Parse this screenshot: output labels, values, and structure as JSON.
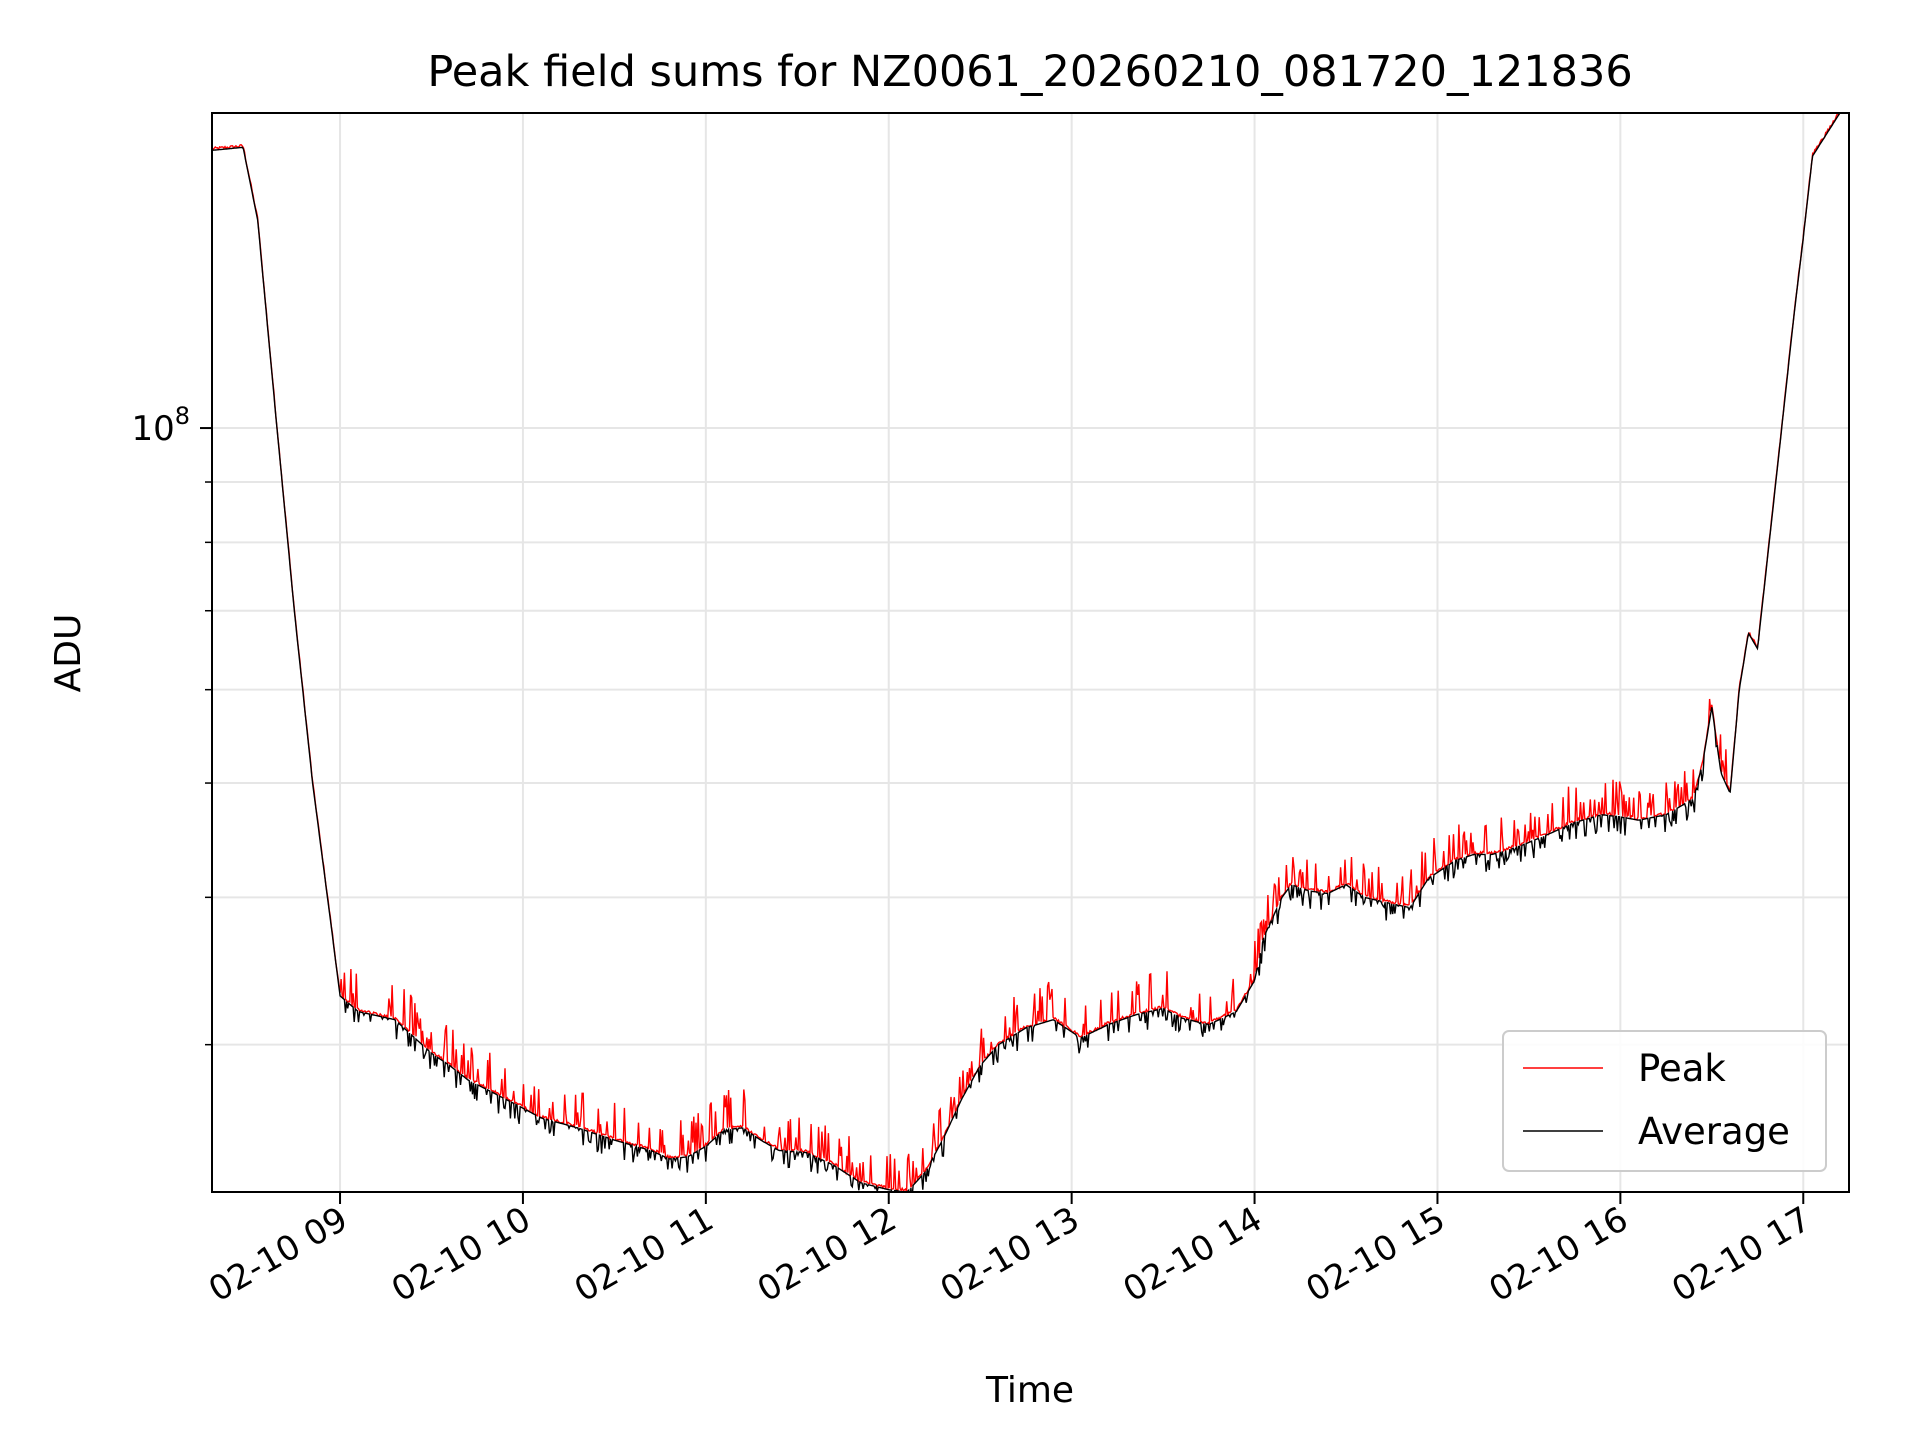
{
  "chart_data": {
    "type": "line",
    "title": "Peak field sums for NZ0061_20260210_081720_121836",
    "xlabel": "Time",
    "ylabel": "ADU",
    "yscale": "log",
    "xlim": [
      8.3,
      17.25
    ],
    "ylim": [
      22500000,
      185000000
    ],
    "grid": true,
    "x_ticks": [
      {
        "value": 9,
        "label": "02-10 09"
      },
      {
        "value": 10,
        "label": "02-10 10"
      },
      {
        "value": 11,
        "label": "02-10 11"
      },
      {
        "value": 12,
        "label": "02-10 12"
      },
      {
        "value": 13,
        "label": "02-10 13"
      },
      {
        "value": 14,
        "label": "02-10 14"
      },
      {
        "value": 15,
        "label": "02-10 15"
      },
      {
        "value": 16,
        "label": "02-10 16"
      },
      {
        "value": 17,
        "label": "02-10 17"
      }
    ],
    "y_major_ticks": [
      {
        "value": 100000000,
        "base": "10",
        "exp": "8"
      }
    ],
    "y_minor_ticks": [
      30000000,
      40000000,
      50000000,
      60000000,
      70000000,
      80000000,
      90000000
    ],
    "legend": {
      "position": "lower right",
      "entries": [
        {
          "label": "Peak",
          "color": "#ff0000"
        },
        {
          "label": "Average",
          "color": "#000000"
        }
      ]
    },
    "series": [
      {
        "name": "Average",
        "color": "#000000",
        "x": [
          8.3,
          8.47,
          8.55,
          8.65,
          8.75,
          8.85,
          8.95,
          9.0,
          9.1,
          9.3,
          9.5,
          9.6,
          9.7,
          9.8,
          10.0,
          10.1,
          10.3,
          10.5,
          10.7,
          10.8,
          10.9,
          11.0,
          11.1,
          11.2,
          11.3,
          11.4,
          11.55,
          11.7,
          11.85,
          12.0,
          12.1,
          12.2,
          12.3,
          12.4,
          12.5,
          12.6,
          12.75,
          12.9,
          13.05,
          13.2,
          13.35,
          13.5,
          13.6,
          13.75,
          13.9,
          14.0,
          14.05,
          14.15,
          14.2,
          14.3,
          14.4,
          14.5,
          14.6,
          14.75,
          14.85,
          14.95,
          15.1,
          15.2,
          15.3,
          15.45,
          15.6,
          15.75,
          15.9,
          16.0,
          16.1,
          16.25,
          16.4,
          16.45,
          16.5,
          16.55,
          16.6,
          16.65,
          16.7,
          16.75,
          16.85,
          16.95,
          17.0,
          17.05,
          17.2
        ],
        "y": [
          172000000,
          173000000,
          150000000,
          102000000,
          70000000,
          50000000,
          38000000,
          33000000,
          32000000,
          31500000,
          29500000,
          28800000,
          28000000,
          27500000,
          26500000,
          26000000,
          25500000,
          24900000,
          24400000,
          24000000,
          24100000,
          24600000,
          25400000,
          25500000,
          24900000,
          24400000,
          24300000,
          23700000,
          22900000,
          22600000,
          22500000,
          23400000,
          25000000,
          27000000,
          28800000,
          30000000,
          31000000,
          31500000,
          30400000,
          31200000,
          31800000,
          32200000,
          31600000,
          31200000,
          32000000,
          34000000,
          37000000,
          40000000,
          41000000,
          40500000,
          40300000,
          41000000,
          40000000,
          39500000,
          39200000,
          41500000,
          43000000,
          43500000,
          43500000,
          44200000,
          45200000,
          46300000,
          47000000,
          46800000,
          46500000,
          47000000,
          48500000,
          52000000,
          58000000,
          51000000,
          49000000,
          60000000,
          67000000,
          65000000,
          90000000,
          125000000,
          145000000,
          170000000,
          185000000
        ]
      }
    ]
  }
}
